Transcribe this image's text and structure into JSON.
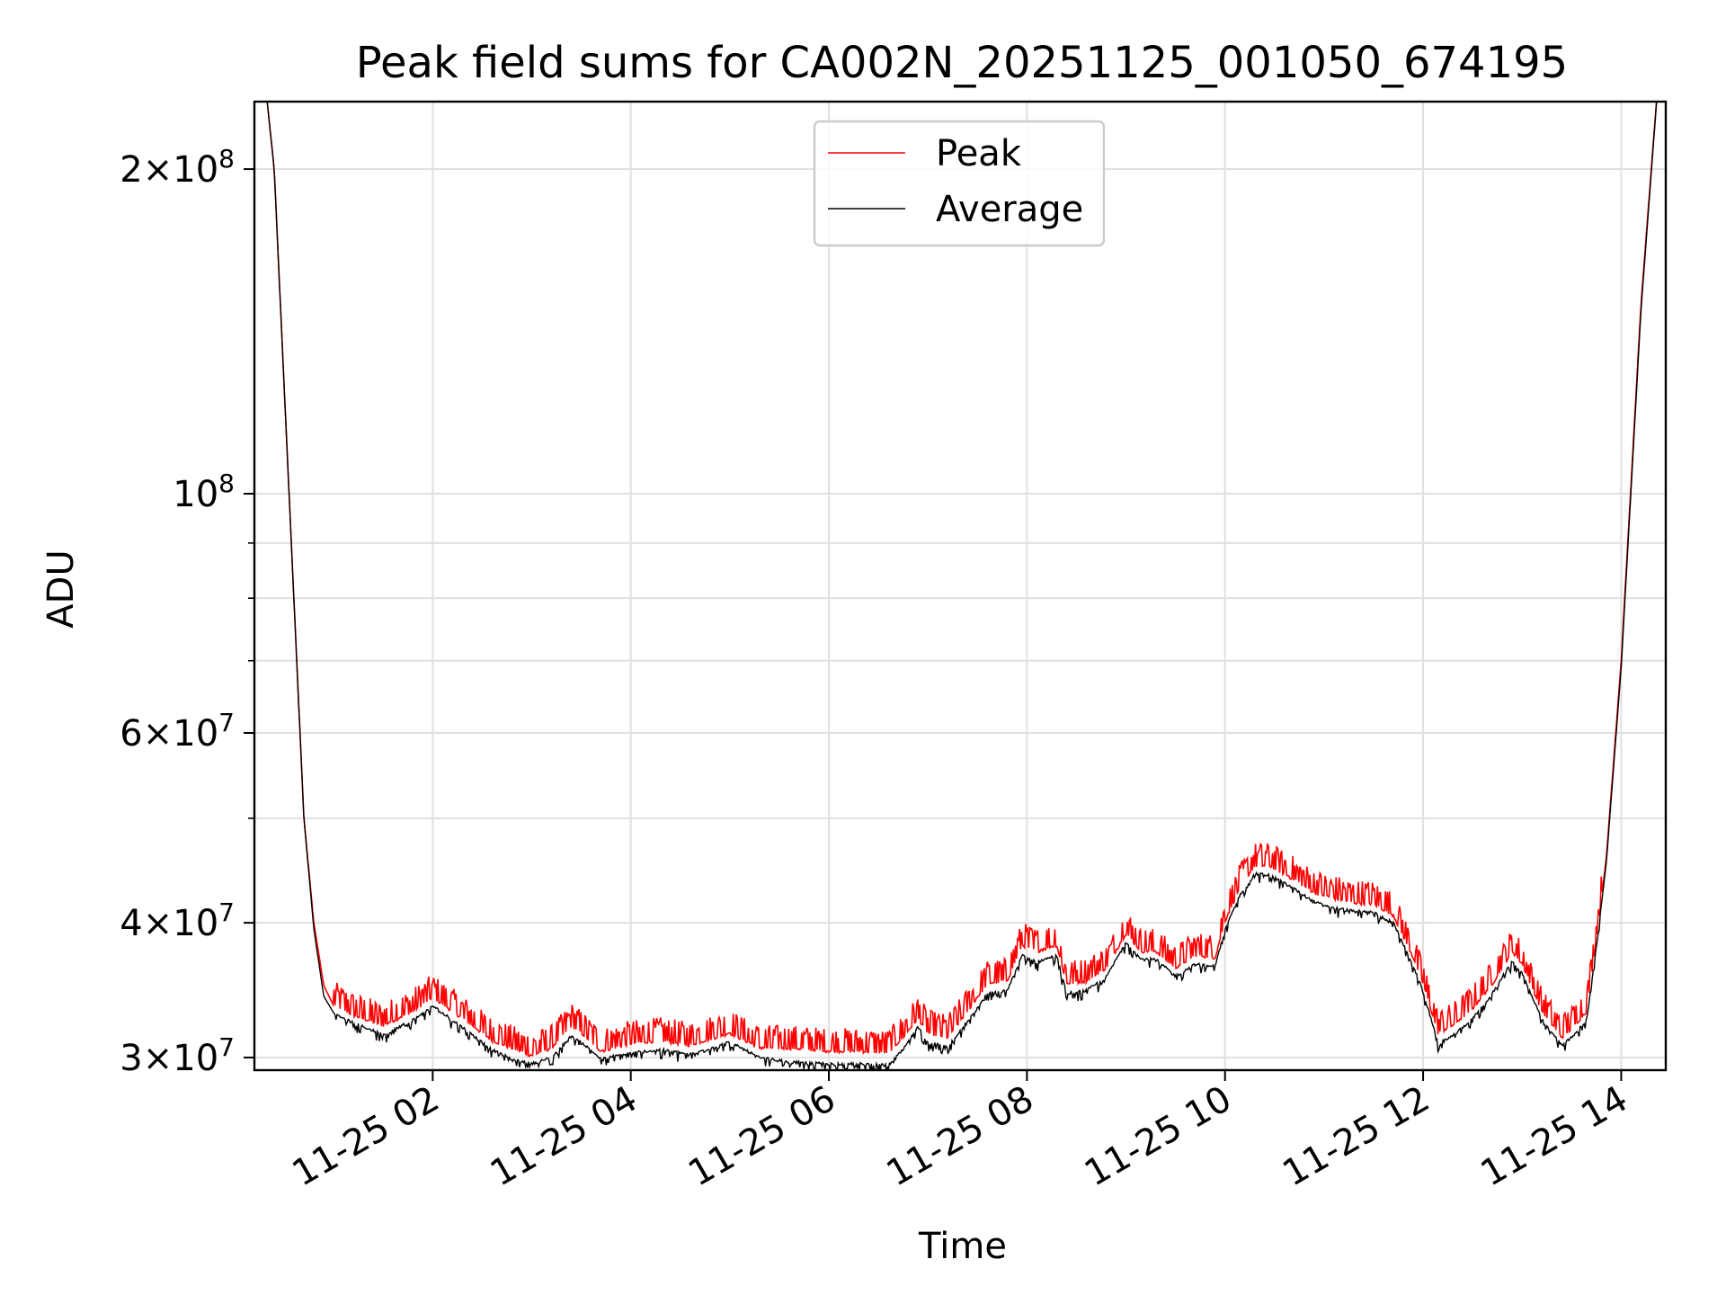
{
  "chart_data": {
    "type": "line",
    "title": "Peak field sums for CA002N_20251125_001050_674195",
    "xlabel": "Time",
    "ylabel": "ADU",
    "yscale": "log",
    "ylim": [
      29200000,
      231000000
    ],
    "xlim_hours": [
      0.2,
      14.45
    ],
    "grid": true,
    "legend_position": "top-center",
    "x_ticks": [
      {
        "hour": 2,
        "label": "11-25 02"
      },
      {
        "hour": 4,
        "label": "11-25 04"
      },
      {
        "hour": 6,
        "label": "11-25 06"
      },
      {
        "hour": 8,
        "label": "11-25 08"
      },
      {
        "hour": 10,
        "label": "11-25 10"
      },
      {
        "hour": 12,
        "label": "11-25 12"
      },
      {
        "hour": 14,
        "label": "11-25 14"
      }
    ],
    "y_major_ticks": [
      {
        "value": 30000000,
        "mantissa": "3",
        "exp": "7"
      },
      {
        "value": 40000000,
        "mantissa": "4",
        "exp": "7"
      },
      {
        "value": 60000000,
        "mantissa": "6",
        "exp": "7"
      },
      {
        "value": 100000000,
        "mantissa": "",
        "exp": "8"
      },
      {
        "value": 200000000,
        "mantissa": "2",
        "exp": "8"
      }
    ],
    "y_minor_ticks": [
      50000000,
      70000000,
      80000000,
      90000000
    ],
    "series": [
      {
        "name": "Peak",
        "color": "#ff0000",
        "hours": [
          0.2,
          0.4,
          0.55,
          0.7,
          0.8,
          0.9,
          1.0,
          1.2,
          1.5,
          1.8,
          2.0,
          2.3,
          2.6,
          2.8,
          3.0,
          3.2,
          3.4,
          3.5,
          3.7,
          4.0,
          4.3,
          4.6,
          5.0,
          5.3,
          5.6,
          6.0,
          6.3,
          6.6,
          6.75,
          6.9,
          7.0,
          7.2,
          7.4,
          7.6,
          7.8,
          7.95,
          8.1,
          8.3,
          8.4,
          8.6,
          8.8,
          9.0,
          9.15,
          9.3,
          9.5,
          9.7,
          9.9,
          10.0,
          10.15,
          10.3,
          10.45,
          10.7,
          10.9,
          11.1,
          11.3,
          11.5,
          11.7,
          11.9,
          12.0,
          12.15,
          12.3,
          12.5,
          12.7,
          12.9,
          13.0,
          13.2,
          13.4,
          13.5,
          13.65,
          13.75,
          13.85,
          14.0,
          14.2,
          14.45
        ],
        "values": [
          300000000,
          200000000,
          100000000,
          50000000,
          40000000,
          35000000,
          33500000,
          32700000,
          32000000,
          33000000,
          34000000,
          32500000,
          31000000,
          30500000,
          30000000,
          30500000,
          32000000,
          31500000,
          30300000,
          30800000,
          31000000,
          30700000,
          31500000,
          30500000,
          30500000,
          30300000,
          30300000,
          30200000,
          31200000,
          32500000,
          31500000,
          31200000,
          33000000,
          35000000,
          35200000,
          38000000,
          37500000,
          38000000,
          35000000,
          35200000,
          36200000,
          39000000,
          37500000,
          37500000,
          36200000,
          37200000,
          37000000,
          40000000,
          43000000,
          45000000,
          45000000,
          43700000,
          42500000,
          42000000,
          41600000,
          41500000,
          40500000,
          37000000,
          35000000,
          31500000,
          32000000,
          33200000,
          35000000,
          37500000,
          36500000,
          33000000,
          31200000,
          31800000,
          33000000,
          38500000,
          46000000,
          70000000,
          150000000,
          300000000
        ]
      },
      {
        "name": "Average",
        "color": "#000000",
        "hours": [
          0.2,
          0.4,
          0.55,
          0.7,
          0.8,
          0.9,
          1.0,
          1.2,
          1.5,
          1.8,
          2.0,
          2.3,
          2.6,
          2.8,
          3.0,
          3.2,
          3.4,
          3.5,
          3.7,
          4.0,
          4.3,
          4.6,
          5.0,
          5.3,
          5.6,
          6.0,
          6.3,
          6.6,
          6.75,
          6.9,
          7.0,
          7.2,
          7.4,
          7.6,
          7.8,
          7.95,
          8.1,
          8.3,
          8.4,
          8.6,
          8.8,
          9.0,
          9.15,
          9.3,
          9.5,
          9.7,
          9.9,
          10.0,
          10.15,
          10.3,
          10.45,
          10.7,
          10.9,
          11.1,
          11.3,
          11.5,
          11.7,
          11.9,
          12.0,
          12.15,
          12.3,
          12.5,
          12.7,
          12.9,
          13.0,
          13.2,
          13.4,
          13.5,
          13.65,
          13.75,
          13.85,
          14.0,
          14.2,
          14.45
        ],
        "values": [
          300000000,
          200000000,
          100000000,
          50000000,
          39500000,
          34200000,
          33000000,
          32300000,
          31500000,
          32500000,
          33500000,
          32000000,
          30500000,
          29900000,
          29600000,
          30000000,
          31400000,
          31000000,
          29900000,
          30300000,
          30500000,
          30200000,
          31000000,
          30000000,
          29700000,
          29600000,
          29600000,
          29500000,
          30500000,
          32000000,
          31000000,
          30700000,
          32400000,
          34400000,
          34600000,
          37300000,
          36800000,
          37300000,
          34400000,
          34600000,
          35600000,
          38400000,
          37000000,
          37000000,
          35700000,
          36600000,
          36500000,
          39400000,
          42400000,
          44400000,
          44300000,
          43000000,
          41800000,
          41300000,
          41000000,
          40900000,
          40000000,
          36500000,
          34500000,
          31000000,
          31400000,
          32600000,
          34400000,
          36900000,
          35900000,
          32500000,
          30800000,
          31300000,
          32500000,
          38000000,
          45500000,
          69000000,
          148000000,
          300000000
        ]
      }
    ]
  }
}
